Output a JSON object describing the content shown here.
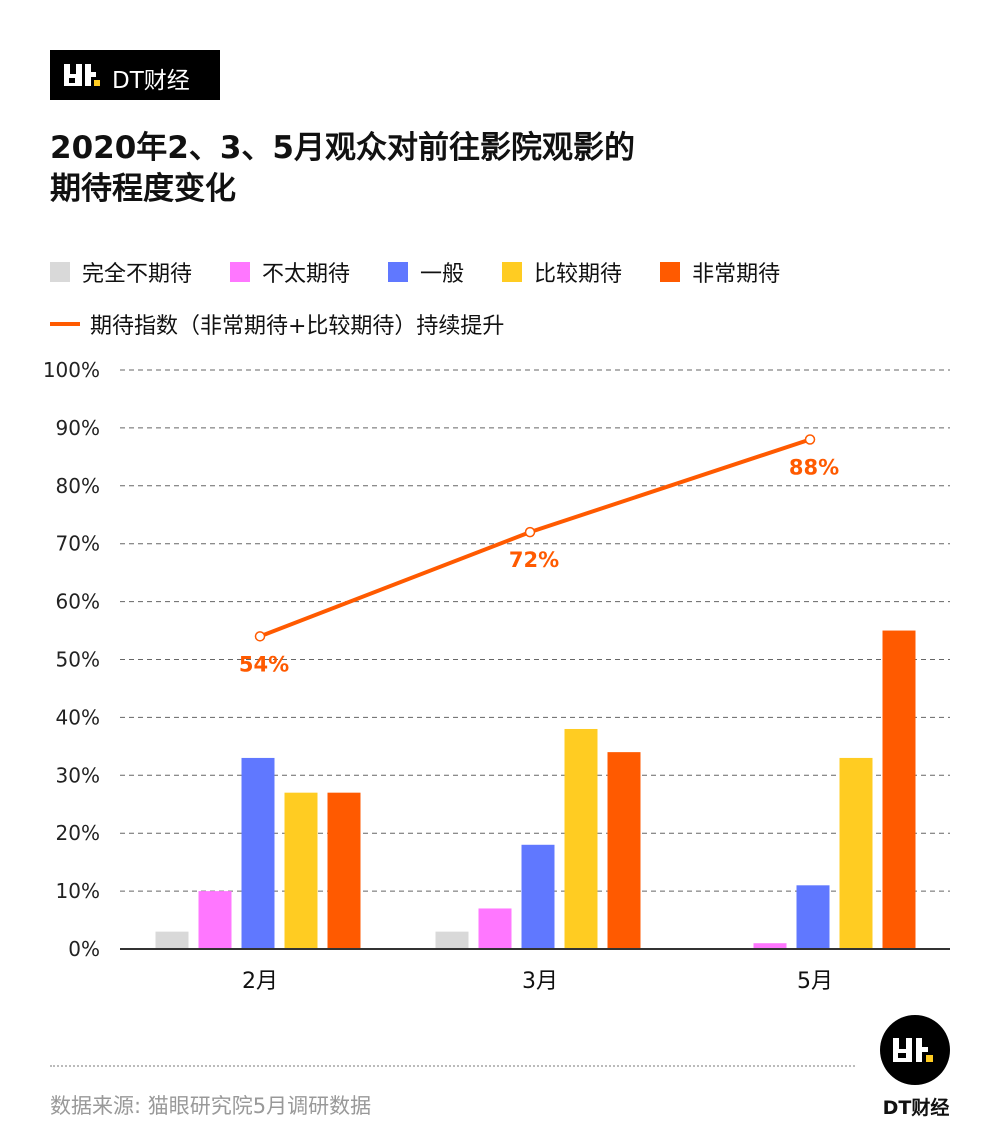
{
  "brand": {
    "logo_text": "DT财经",
    "footer_brand": "DT财经"
  },
  "title_lines": [
    "2020年2、3、5月观众对前往影院观影的",
    "期待程度变化"
  ],
  "source": "数据来源: 猫眼研究院5月调研数据",
  "chart_data": {
    "type": "bar",
    "categories": [
      "2月",
      "3月",
      "5月"
    ],
    "ylim": [
      0,
      100
    ],
    "yticks": [
      "0%",
      "10%",
      "20%",
      "30%",
      "40%",
      "50%",
      "60%",
      "70%",
      "80%",
      "90%",
      "100%"
    ],
    "grid": true,
    "series": [
      {
        "name": "完全不期待",
        "color": "#d9d9d9",
        "values": [
          3,
          3,
          0
        ]
      },
      {
        "name": "不太期待",
        "color": "#ff77ff",
        "values": [
          10,
          7,
          1
        ]
      },
      {
        "name": "一般",
        "color": "#6078ff",
        "values": [
          33,
          18,
          11
        ]
      },
      {
        "name": "比较期待",
        "color": "#ffcc22",
        "values": [
          27,
          38,
          33
        ]
      },
      {
        "name": "非常期待",
        "color": "#ff5a00",
        "values": [
          27,
          34,
          55
        ]
      }
    ],
    "line": {
      "name": "期待指数（非常期待+比较期待）持续提升",
      "color": "#ff5a00",
      "values": [
        54,
        72,
        88
      ],
      "labels": [
        "54%",
        "72%",
        "88%"
      ]
    }
  }
}
